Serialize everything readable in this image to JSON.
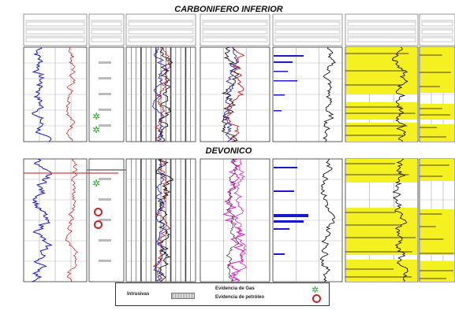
{
  "sections": {
    "top_title": "CARBONIFERO INFERIOR",
    "mid_title": "DEVONICO"
  },
  "legend": {
    "intrusives_label": "Intrusivas",
    "gas_label": "Evidencia de Gas",
    "oil_label": "Evidencia de petróleo"
  },
  "colors": {
    "gr_curve": "#1a1acc",
    "red_curve": "#cc1111",
    "black_curve": "#111111",
    "magenta_curve": "#dd22cc",
    "yellow_fill": "#f5f020",
    "gas_symbol": "#22aa22",
    "oil_symbol": "#cc2222"
  }
}
